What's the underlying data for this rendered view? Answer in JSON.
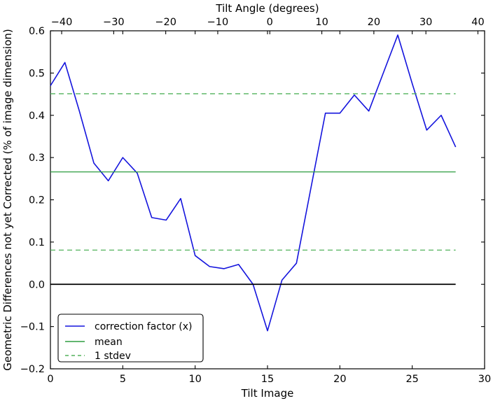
{
  "figure": {
    "background": "#ffffff",
    "spine_color": "#000000"
  },
  "chart_data": {
    "type": "line",
    "title": "",
    "top_axis": {
      "label": "Tilt Angle (degrees)",
      "tick_labels": [
        "−40",
        "−30",
        "−20",
        "−10",
        "0",
        "10",
        "20",
        "30",
        "40"
      ],
      "tick_values": [
        -40,
        -30,
        -20,
        -10,
        0,
        10,
        20,
        30,
        40
      ],
      "range": [
        -42.16,
        41.28
      ]
    },
    "bottom_axis": {
      "label": "Tilt Image",
      "tick_labels": [
        "0",
        "5",
        "10",
        "15",
        "20",
        "25",
        "30"
      ],
      "tick_values": [
        0,
        5,
        10,
        15,
        20,
        25,
        30
      ],
      "range": [
        0,
        30
      ]
    },
    "left_axis": {
      "label": "Geometric Differences not yet Corrected (% of image dimension)",
      "tick_labels": [
        "0.6",
        "0.5",
        "0.4",
        "0.3",
        "0.2",
        "0.1",
        "0.0",
        "−0.1",
        "−0.2"
      ],
      "tick_values": [
        0.6,
        0.5,
        0.4,
        0.3,
        0.2,
        0.1,
        0.0,
        -0.1,
        -0.2
      ],
      "range": [
        -0.2,
        0.6
      ]
    },
    "grid": false,
    "series": [
      {
        "name": "correction factor (x)",
        "kind": "line",
        "color": "#1414dd",
        "style": "solid",
        "x": [
          0,
          1,
          2,
          3,
          4,
          5,
          6,
          7,
          8,
          9,
          10,
          11,
          12,
          13,
          14,
          15,
          16,
          17,
          18,
          19,
          20,
          21,
          22,
          23,
          24,
          25,
          26,
          27,
          28
        ],
        "y": [
          0.47,
          0.525,
          0.41,
          0.287,
          0.245,
          0.3,
          0.263,
          0.158,
          0.152,
          0.203,
          0.068,
          0.042,
          0.037,
          0.047,
          0.0,
          -0.11,
          0.01,
          0.05,
          0.228,
          0.405,
          0.405,
          0.448,
          0.41,
          0.5,
          0.59,
          0.475,
          0.365,
          0.4,
          0.325
        ]
      },
      {
        "name": "mean",
        "kind": "hline",
        "color": "#2e9e40",
        "style": "solid",
        "values": [
          0.266
        ],
        "x_start": 0,
        "x_end": 28
      },
      {
        "name": "1 stdev",
        "kind": "hline",
        "color": "#52b25c",
        "style": "dashed",
        "values": [
          0.451,
          0.081
        ],
        "x_start": 0,
        "x_end": 28
      },
      {
        "name": "zero baseline",
        "kind": "hline",
        "color": "#000000",
        "style": "solid",
        "values": [
          0.0
        ],
        "x_start": 0,
        "x_end": 28
      }
    ],
    "legend": {
      "position": "lower left",
      "items": [
        {
          "label": "correction factor (x)",
          "color": "#1414dd",
          "style": "solid"
        },
        {
          "label": "mean",
          "color": "#2e9e40",
          "style": "solid"
        },
        {
          "label": "1 stdev",
          "color": "#52b25c",
          "style": "dashed"
        }
      ]
    }
  }
}
